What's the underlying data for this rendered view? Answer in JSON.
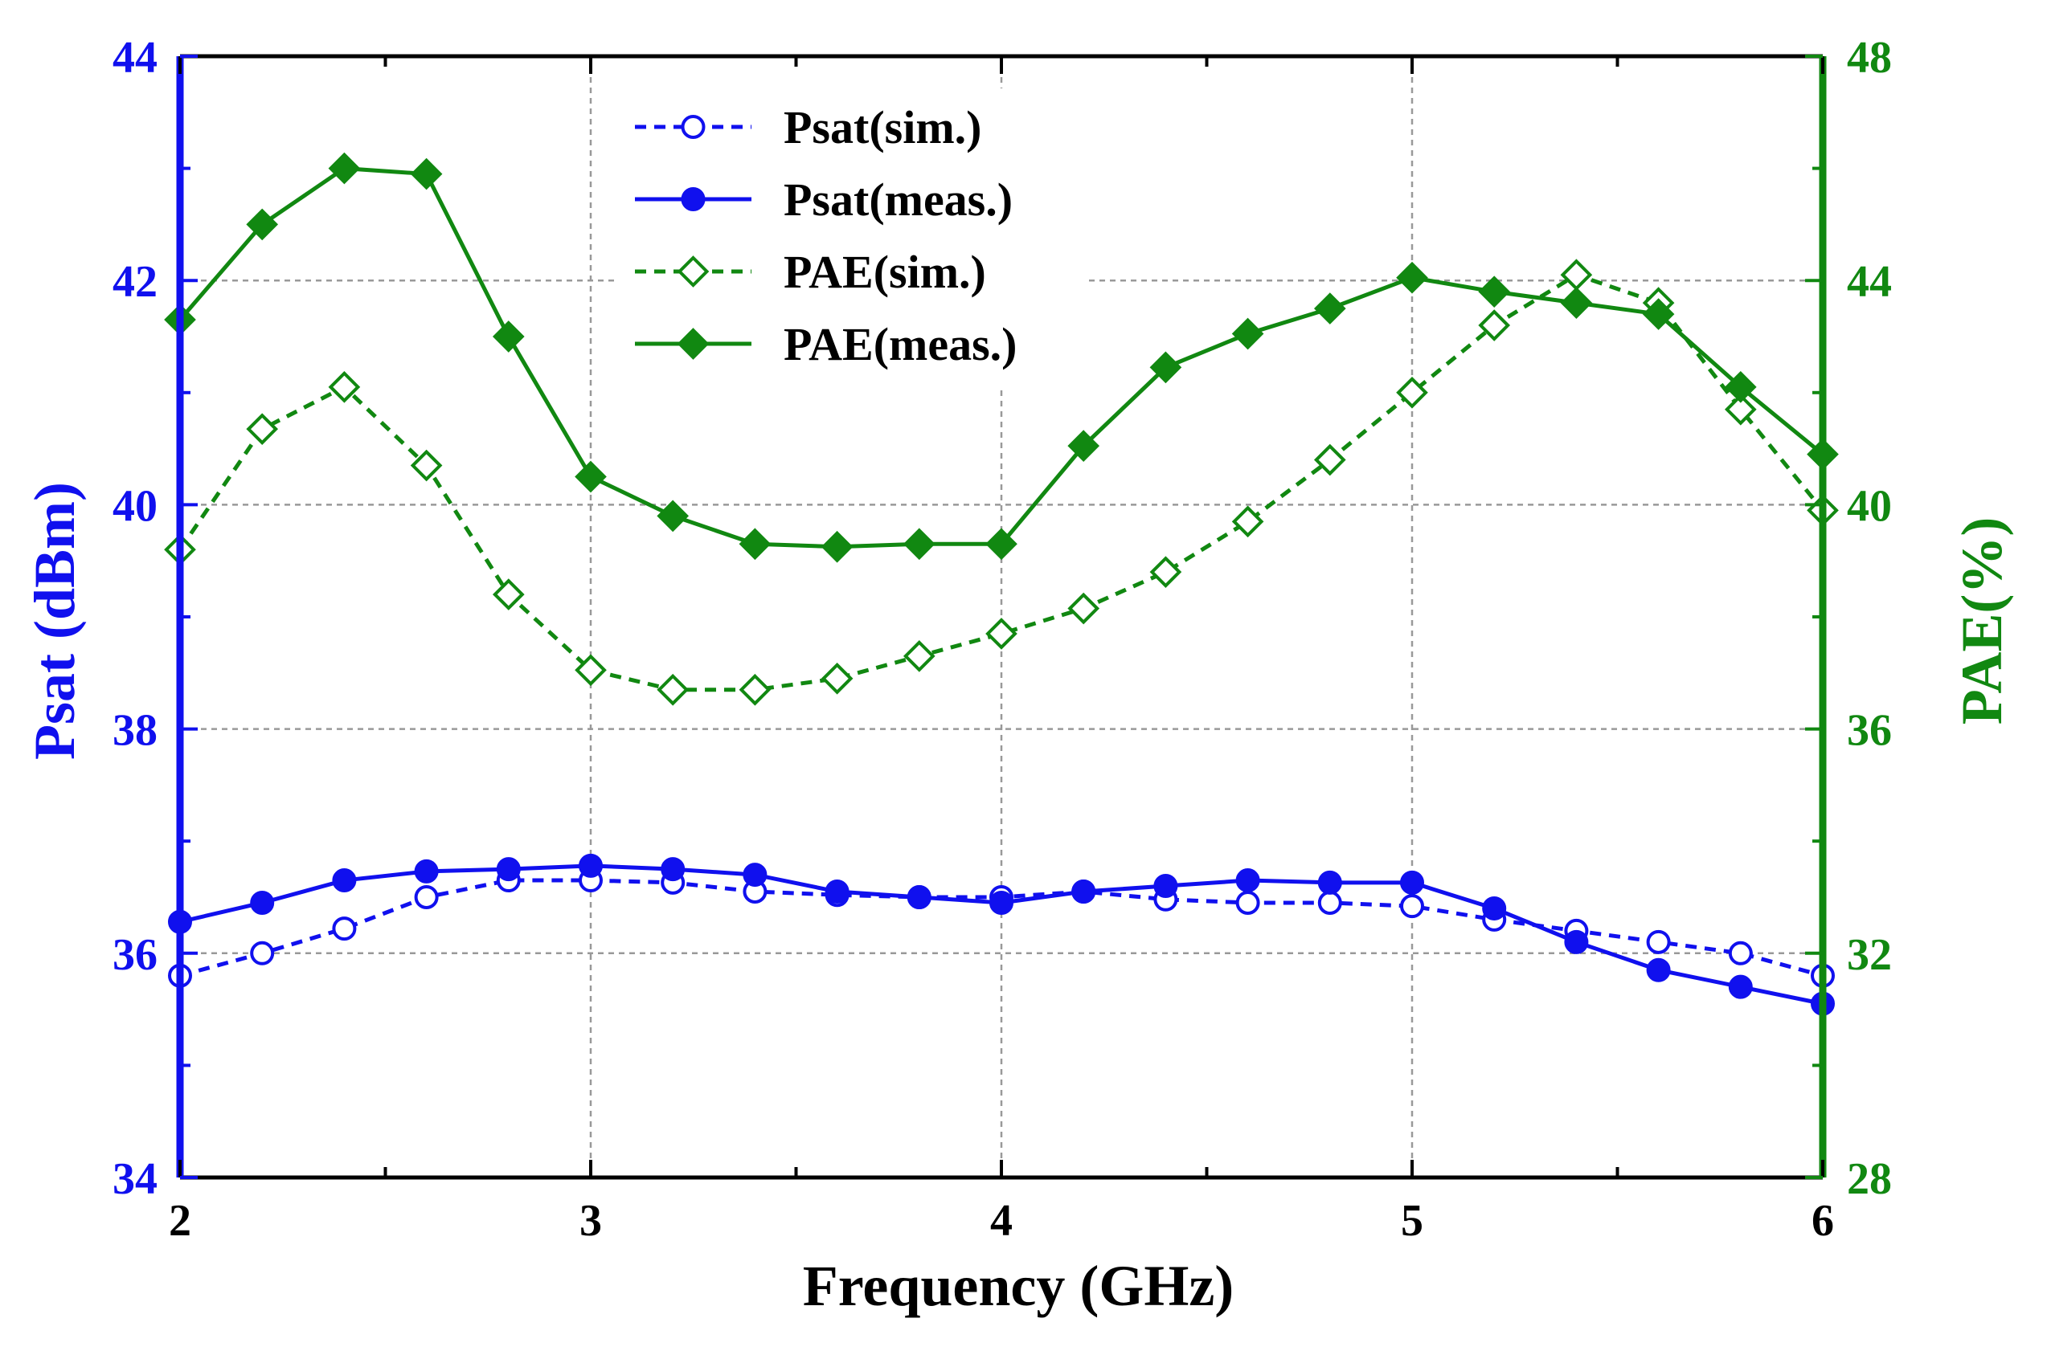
{
  "chart_data": {
    "type": "line",
    "xlabel": "Frequency (GHz)",
    "ylabel_left": "Psat (dBm)",
    "ylabel_right": "PAE(%)",
    "xlim": [
      2,
      6
    ],
    "ylim_left": [
      34,
      44
    ],
    "ylim_right": [
      28,
      48
    ],
    "x_ticks": [
      2,
      3,
      4,
      5,
      6
    ],
    "y_left_ticks": [
      34,
      36,
      38,
      40,
      42,
      44
    ],
    "y_right_ticks": [
      28,
      32,
      36,
      40,
      44,
      48
    ],
    "grid": true,
    "legend_position": "top-center",
    "colors": {
      "left_axis": "#1010ee",
      "right_axis": "#118811",
      "grid": "#999999"
    },
    "x": [
      2.0,
      2.2,
      2.4,
      2.6,
      2.8,
      3.0,
      3.2,
      3.4,
      3.6,
      3.8,
      4.0,
      4.2,
      4.4,
      4.6,
      4.8,
      5.0,
      5.2,
      5.4,
      5.6,
      5.8,
      6.0
    ],
    "series": [
      {
        "name": "Psat(sim.)",
        "axis": "left",
        "style": "dashed",
        "marker": "open-circle",
        "color": "#1010ee",
        "values": [
          35.8,
          36.0,
          36.22,
          36.5,
          36.65,
          36.65,
          36.63,
          36.55,
          36.52,
          36.5,
          36.5,
          36.55,
          36.48,
          36.45,
          36.45,
          36.42,
          36.3,
          36.2,
          36.1,
          36.0,
          35.8
        ]
      },
      {
        "name": "Psat(meas.)",
        "axis": "left",
        "style": "solid",
        "marker": "filled-circle",
        "color": "#1010ee",
        "values": [
          36.28,
          36.45,
          36.65,
          36.73,
          36.75,
          36.78,
          36.75,
          36.7,
          36.55,
          36.5,
          36.45,
          36.55,
          36.6,
          36.65,
          36.63,
          36.63,
          36.4,
          36.1,
          35.85,
          35.7,
          35.55
        ]
      },
      {
        "name": "PAE(sim.)",
        "axis": "right",
        "style": "dashed",
        "marker": "open-diamond",
        "color": "#118811",
        "values": [
          39.2,
          41.35,
          42.1,
          40.7,
          38.4,
          37.05,
          36.7,
          36.7,
          36.9,
          37.3,
          37.7,
          38.15,
          38.8,
          39.7,
          40.8,
          42.0,
          43.2,
          44.1,
          43.6,
          41.7,
          39.9
        ]
      },
      {
        "name": "PAE(meas.)",
        "axis": "right",
        "style": "solid",
        "marker": "filled-diamond",
        "color": "#118811",
        "values": [
          43.3,
          45.0,
          46.0,
          45.9,
          43.0,
          40.5,
          39.8,
          39.3,
          39.25,
          39.3,
          39.3,
          41.05,
          42.45,
          43.05,
          43.5,
          44.05,
          43.8,
          43.6,
          43.4,
          42.1,
          40.9
        ]
      }
    ]
  }
}
